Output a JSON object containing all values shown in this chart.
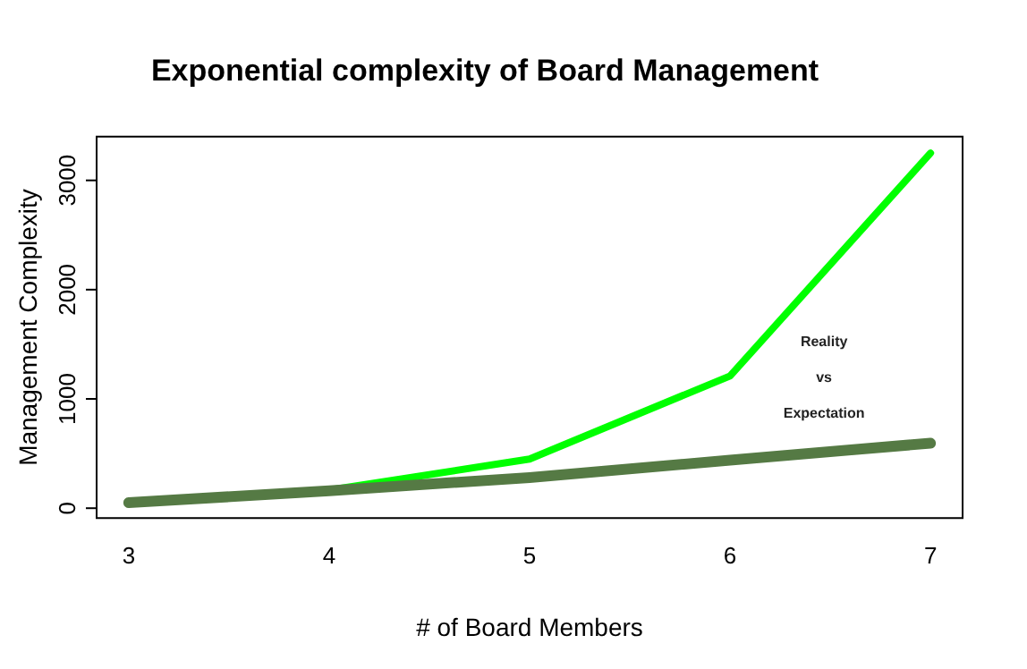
{
  "chart_data": {
    "type": "line",
    "title": "Exponential complexity of Board Management",
    "xlabel": "# of Board Members",
    "ylabel": "Management Complexity",
    "x": [
      3,
      4,
      5,
      6,
      7
    ],
    "series": [
      {
        "color": "#00ff00",
        "values": [
          50,
          165,
          450,
          1210,
          3250
        ]
      },
      {
        "color": "#557a44",
        "values": [
          50,
          160,
          280,
          440,
          595
        ]
      }
    ],
    "xlim": [
      2.84,
      7.16
    ],
    "xticks": [
      3,
      4,
      5,
      6,
      7
    ],
    "ylim": [
      -90,
      3400
    ],
    "yticks": [
      0,
      1000,
      2000,
      3000
    ],
    "annotations": [
      "Reality",
      "vs",
      "Expectation"
    ],
    "grid": false,
    "legend": false,
    "marker": "none",
    "line_style": "solid"
  }
}
